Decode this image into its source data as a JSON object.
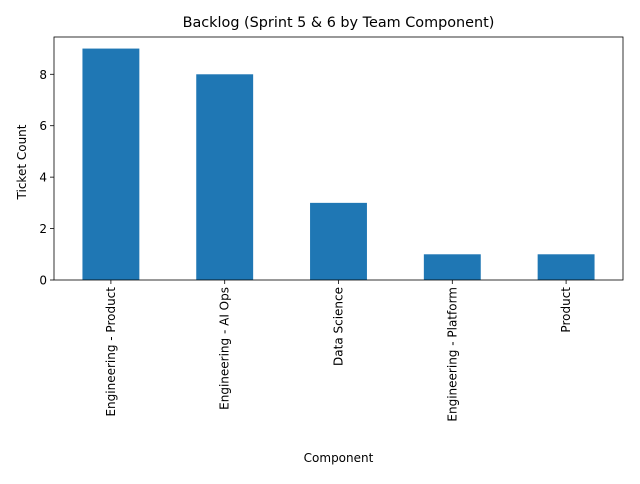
{
  "chart_data": {
    "type": "bar",
    "title": "Backlog (Sprint 5 & 6 by Team Component)",
    "xlabel": "Component",
    "ylabel": "Ticket Count",
    "categories": [
      "Engineering - Product",
      "Engineering - AI Ops",
      "Data Science",
      "Engineering - Platform",
      "Product"
    ],
    "values": [
      9,
      8,
      3,
      1,
      1
    ],
    "ylim": [
      0,
      9.45
    ],
    "yticks": [
      0,
      2,
      4,
      6,
      8
    ],
    "grid": false,
    "legend": "none",
    "colors": {
      "bar": "#1f77b4",
      "axis": "#000000",
      "background": "#ffffff"
    }
  }
}
